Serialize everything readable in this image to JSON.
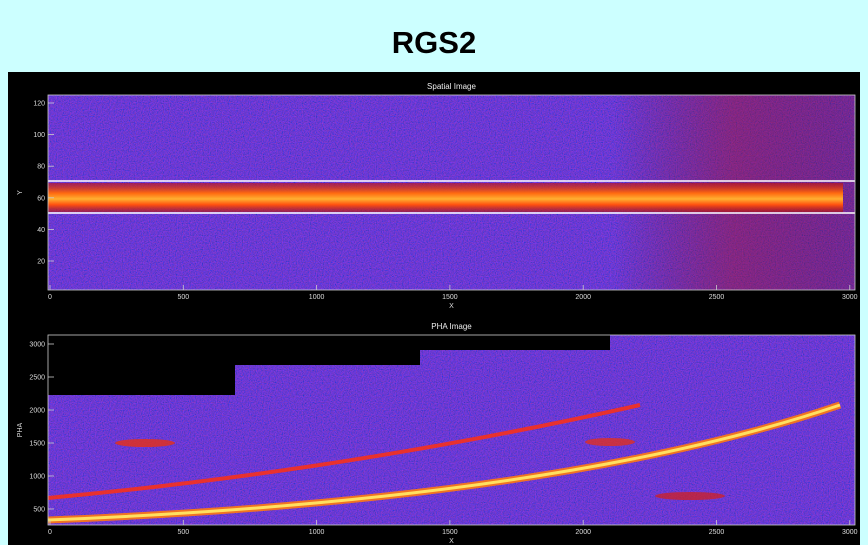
{
  "header": {
    "title": "RGS2"
  },
  "panels": [
    {
      "title": "Spatial Image",
      "x_label": "X",
      "y_label": "Y",
      "x_ticks": [
        "0",
        "500",
        "1000",
        "1500",
        "2000",
        "2500",
        "3000"
      ],
      "y_ticks": [
        "120",
        "100",
        "80",
        "60",
        "40",
        "20"
      ]
    },
    {
      "title": "PHA Image",
      "x_label": "X",
      "y_label": "PHA",
      "x_ticks": [
        "0",
        "500",
        "1000",
        "1500",
        "2000",
        "2500",
        "3000"
      ],
      "y_ticks": [
        "3000",
        "2500",
        "2000",
        "1500",
        "1000",
        "500"
      ]
    }
  ]
}
